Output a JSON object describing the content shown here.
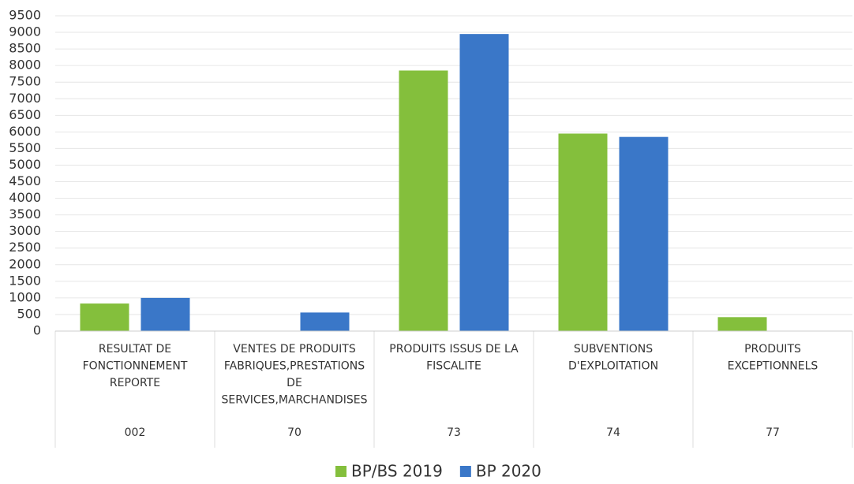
{
  "chart_data": {
    "type": "bar",
    "categories": [
      [
        "RESULTAT DE",
        "FONCTIONNEMENT",
        "REPORTE"
      ],
      [
        "VENTES DE PRODUITS",
        "FABRIQUES,PRESTATIONS",
        "DE",
        "SERVICES,MARCHANDISES"
      ],
      [
        "PRODUITS ISSUS DE LA",
        "FISCALITE"
      ],
      [
        "SUBVENTIONS",
        "D'EXPLOITATION"
      ],
      [
        "PRODUITS",
        "EXCEPTIONNELS"
      ]
    ],
    "category_codes": [
      "002",
      "70",
      "73",
      "74",
      "77"
    ],
    "series": [
      {
        "name": "BP/BS 2019",
        "color": "#84bf3c",
        "values": [
          830,
          null,
          7850,
          5950,
          420
        ]
      },
      {
        "name": "BP 2020",
        "color": "#3a77c8",
        "values": [
          1000,
          560,
          8950,
          5850,
          null
        ]
      }
    ],
    "ylim": [
      0,
      9500
    ],
    "yticks": [
      0,
      500,
      1000,
      1500,
      2000,
      2500,
      3000,
      3500,
      4000,
      4500,
      5000,
      5500,
      6000,
      6500,
      7000,
      7500,
      8000,
      8500,
      9000,
      9500
    ],
    "grid": true,
    "legend": "bottom"
  }
}
